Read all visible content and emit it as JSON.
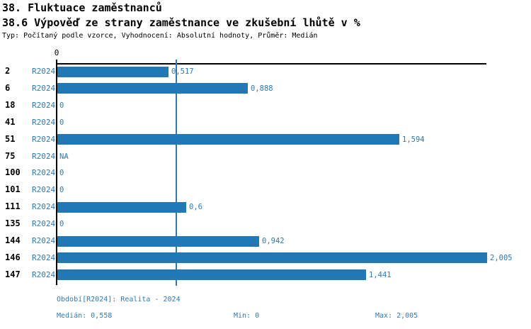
{
  "header": {
    "title": "38. Fluktuace zaměstnanců",
    "subtitle": "38.6 Výpověď ze strany zaměstnance ve zkušební lhůtě v %",
    "meta": "Typ: Počítaný podle vzorce, Vyhodnocení: Absolutní hodnoty, Průměr: Medián"
  },
  "chart_data": {
    "type": "bar",
    "orientation": "horizontal",
    "title": "38.6 Výpověď ze strany zaměstnance ve zkušební lhůtě v %",
    "categories": [
      "2",
      "6",
      "18",
      "41",
      "51",
      "75",
      "100",
      "101",
      "111",
      "135",
      "144",
      "146",
      "147"
    ],
    "period_label": "R2024",
    "series": [
      {
        "name": "R2024",
        "values": [
          0.517,
          0.888,
          0,
          0,
          1.594,
          null,
          0,
          0,
          0.6,
          0,
          0.942,
          2.005,
          1.441
        ],
        "value_labels": [
          "0,517",
          "0,888",
          "0",
          "0",
          "1,594",
          "NA",
          "0",
          "0",
          "0,6",
          "0",
          "0,942",
          "2,005",
          "1,441"
        ]
      }
    ],
    "xlim": [
      0,
      2.005
    ],
    "axis_zero_label": "0",
    "median_value": 0.558,
    "grid": false,
    "legend": false,
    "bar_color": "#2277b5",
    "median_line_color": "#2b7bb9",
    "value_label_color": "#2b7bb9"
  },
  "footer": {
    "period_info": "Období[R2024]: Realita - 2024",
    "median": "Medián: 0,558",
    "min": "Min: 0",
    "max": "Max: 2,005"
  }
}
